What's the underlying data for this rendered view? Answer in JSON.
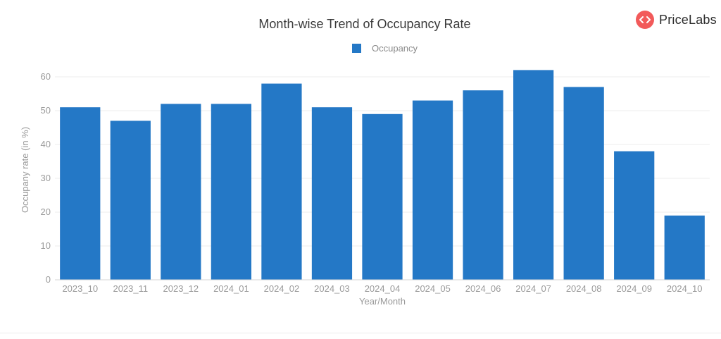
{
  "logo": {
    "text": "PriceLabs",
    "icon": "code-brackets-icon",
    "color": "#f25a5a"
  },
  "chart_data": {
    "type": "bar",
    "title": "Month-wise Trend of Occupancy Rate",
    "xlabel": "Year/Month",
    "ylabel": "Occupany rate (in %)",
    "ylim": [
      0,
      65
    ],
    "yticks": [
      0,
      10,
      20,
      30,
      40,
      50,
      60
    ],
    "grid": true,
    "legend_position": "top-center",
    "bar_color": "#2478c6",
    "categories": [
      "2023_10",
      "2023_11",
      "2023_12",
      "2024_01",
      "2024_02",
      "2024_03",
      "2024_04",
      "2024_05",
      "2024_06",
      "2024_07",
      "2024_08",
      "2024_09",
      "2024_10"
    ],
    "series": [
      {
        "name": "Occupancy",
        "values": [
          51,
          47,
          52,
          52,
          58,
          51,
          49,
          53,
          56,
          62,
          57,
          38,
          19
        ]
      }
    ]
  }
}
